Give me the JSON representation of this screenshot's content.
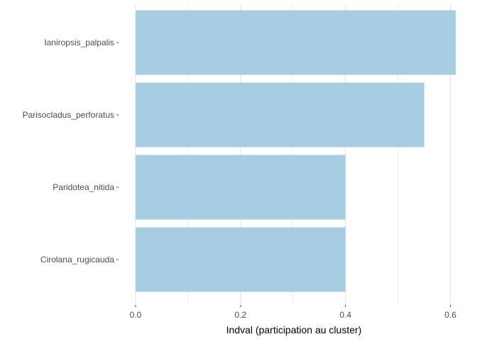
{
  "chart_data": {
    "type": "bar",
    "orientation": "horizontal",
    "categories": [
      "Ianiropsis_palpalis",
      "Parisocladus_perforatus",
      "Paridotea_nitida",
      "Cirolana_rugicauda"
    ],
    "values": [
      0.61,
      0.55,
      0.4,
      0.4
    ],
    "xlabel": "Indval (participation au cluster)",
    "ylabel": "",
    "title": "",
    "xlim": [
      0,
      0.61
    ],
    "x_ticks": [
      0.0,
      0.2,
      0.4,
      0.6
    ],
    "x_tick_labels": [
      "0.0",
      "0.2",
      "0.4",
      "0.6"
    ],
    "bar_color": "#a6cde1",
    "grid_color": "#e0e0e0",
    "grid": true,
    "legend": "none"
  }
}
